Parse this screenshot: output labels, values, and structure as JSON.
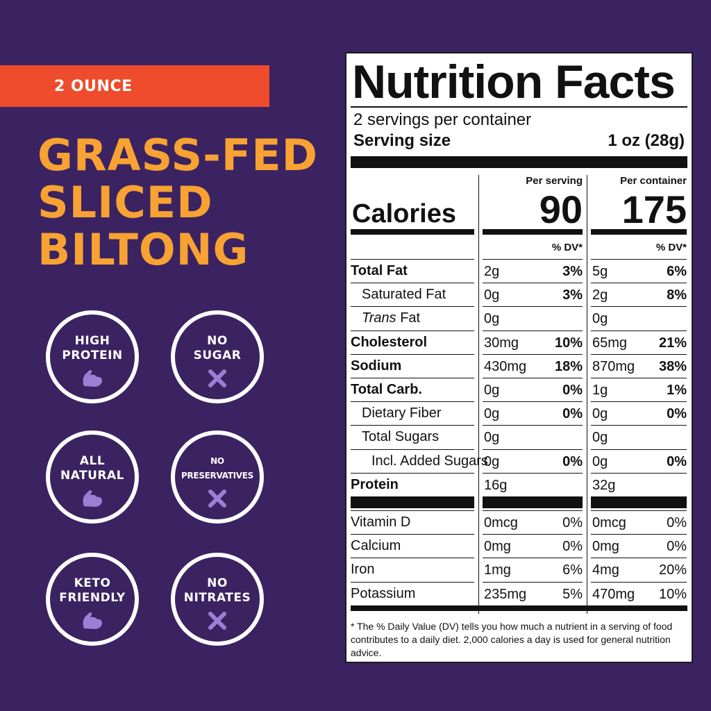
{
  "banner": "2 OUNCE",
  "headline": [
    "GRASS-FED",
    "SLICED",
    "BILTONG"
  ],
  "badges": [
    {
      "label": "HIGH\nPROTEIN",
      "icon": "flex-arm-icon"
    },
    {
      "label": "NO\nSUGAR",
      "icon": "x-icon"
    },
    {
      "label": "ALL\nNATURAL",
      "icon": "flex-arm-icon"
    },
    {
      "label": "NO\nPRESERVATIVES",
      "icon": "x-icon"
    },
    {
      "label": "KETO\nFRIENDLY",
      "icon": "flex-arm-icon"
    },
    {
      "label": "NO\nNITRATES",
      "icon": "x-icon"
    }
  ],
  "colors": {
    "background": "#3b2261",
    "banner": "#ef4b2d",
    "headline": "#f7a233",
    "icon": "#9b7fd4"
  },
  "nutrition": {
    "title": "Nutrition Facts",
    "servings": "2 servings per container",
    "serving_size_label": "Serving size",
    "serving_size_value": "1 oz (28g)",
    "per_serving": "Per serving",
    "per_container": "Per container",
    "calories_label": "Calories",
    "calories_serving": "90",
    "calories_container": "175",
    "dv_header": "% DV*",
    "rows": [
      {
        "name": "Total Fat",
        "s_amt": "2g",
        "s_dv": "3%",
        "c_amt": "5g",
        "c_dv": "6%"
      },
      {
        "name": "Saturated Fat",
        "s_amt": "0g",
        "s_dv": "3%",
        "c_amt": "2g",
        "c_dv": "8%"
      },
      {
        "name": "Trans",
        "name_suffix": " Fat",
        "s_amt": "0g",
        "s_dv": "",
        "c_amt": "0g",
        "c_dv": ""
      },
      {
        "name": "Cholesterol",
        "s_amt": "30mg",
        "s_dv": "10%",
        "c_amt": "65mg",
        "c_dv": "21%"
      },
      {
        "name": "Sodium",
        "s_amt": "430mg",
        "s_dv": "18%",
        "c_amt": "870mg",
        "c_dv": "38%"
      },
      {
        "name": "Total Carb.",
        "s_amt": "0g",
        "s_dv": "0%",
        "c_amt": "1g",
        "c_dv": "1%"
      },
      {
        "name": "Dietary Fiber",
        "s_amt": "0g",
        "s_dv": "0%",
        "c_amt": "0g",
        "c_dv": "0%"
      },
      {
        "name": "Total Sugars",
        "s_amt": "0g",
        "s_dv": "",
        "c_amt": "0g",
        "c_dv": ""
      },
      {
        "name": "Incl. Added Sugars",
        "s_amt": "0g",
        "s_dv": "0%",
        "c_amt": "0g",
        "c_dv": "0%"
      },
      {
        "name": "Protein",
        "s_amt": "16g",
        "s_dv": "",
        "c_amt": "32g",
        "c_dv": ""
      }
    ],
    "vitamins": [
      {
        "name": "Vitamin D",
        "s_amt": "0mcg",
        "s_dv": "0%",
        "c_amt": "0mcg",
        "c_dv": "0%"
      },
      {
        "name": "Calcium",
        "s_amt": "0mg",
        "s_dv": "0%",
        "c_amt": "0mg",
        "c_dv": "0%"
      },
      {
        "name": "Iron",
        "s_amt": "1mg",
        "s_dv": "6%",
        "c_amt": "4mg",
        "c_dv": "20%"
      },
      {
        "name": "Potassium",
        "s_amt": "235mg",
        "s_dv": "5%",
        "c_amt": "470mg",
        "c_dv": "10%"
      }
    ],
    "footnote": "* The % Daily Value (DV) tells you how much a nutrient in a serving of food contributes to a daily diet. 2,000 calories a day is used for general nutrition advice."
  }
}
